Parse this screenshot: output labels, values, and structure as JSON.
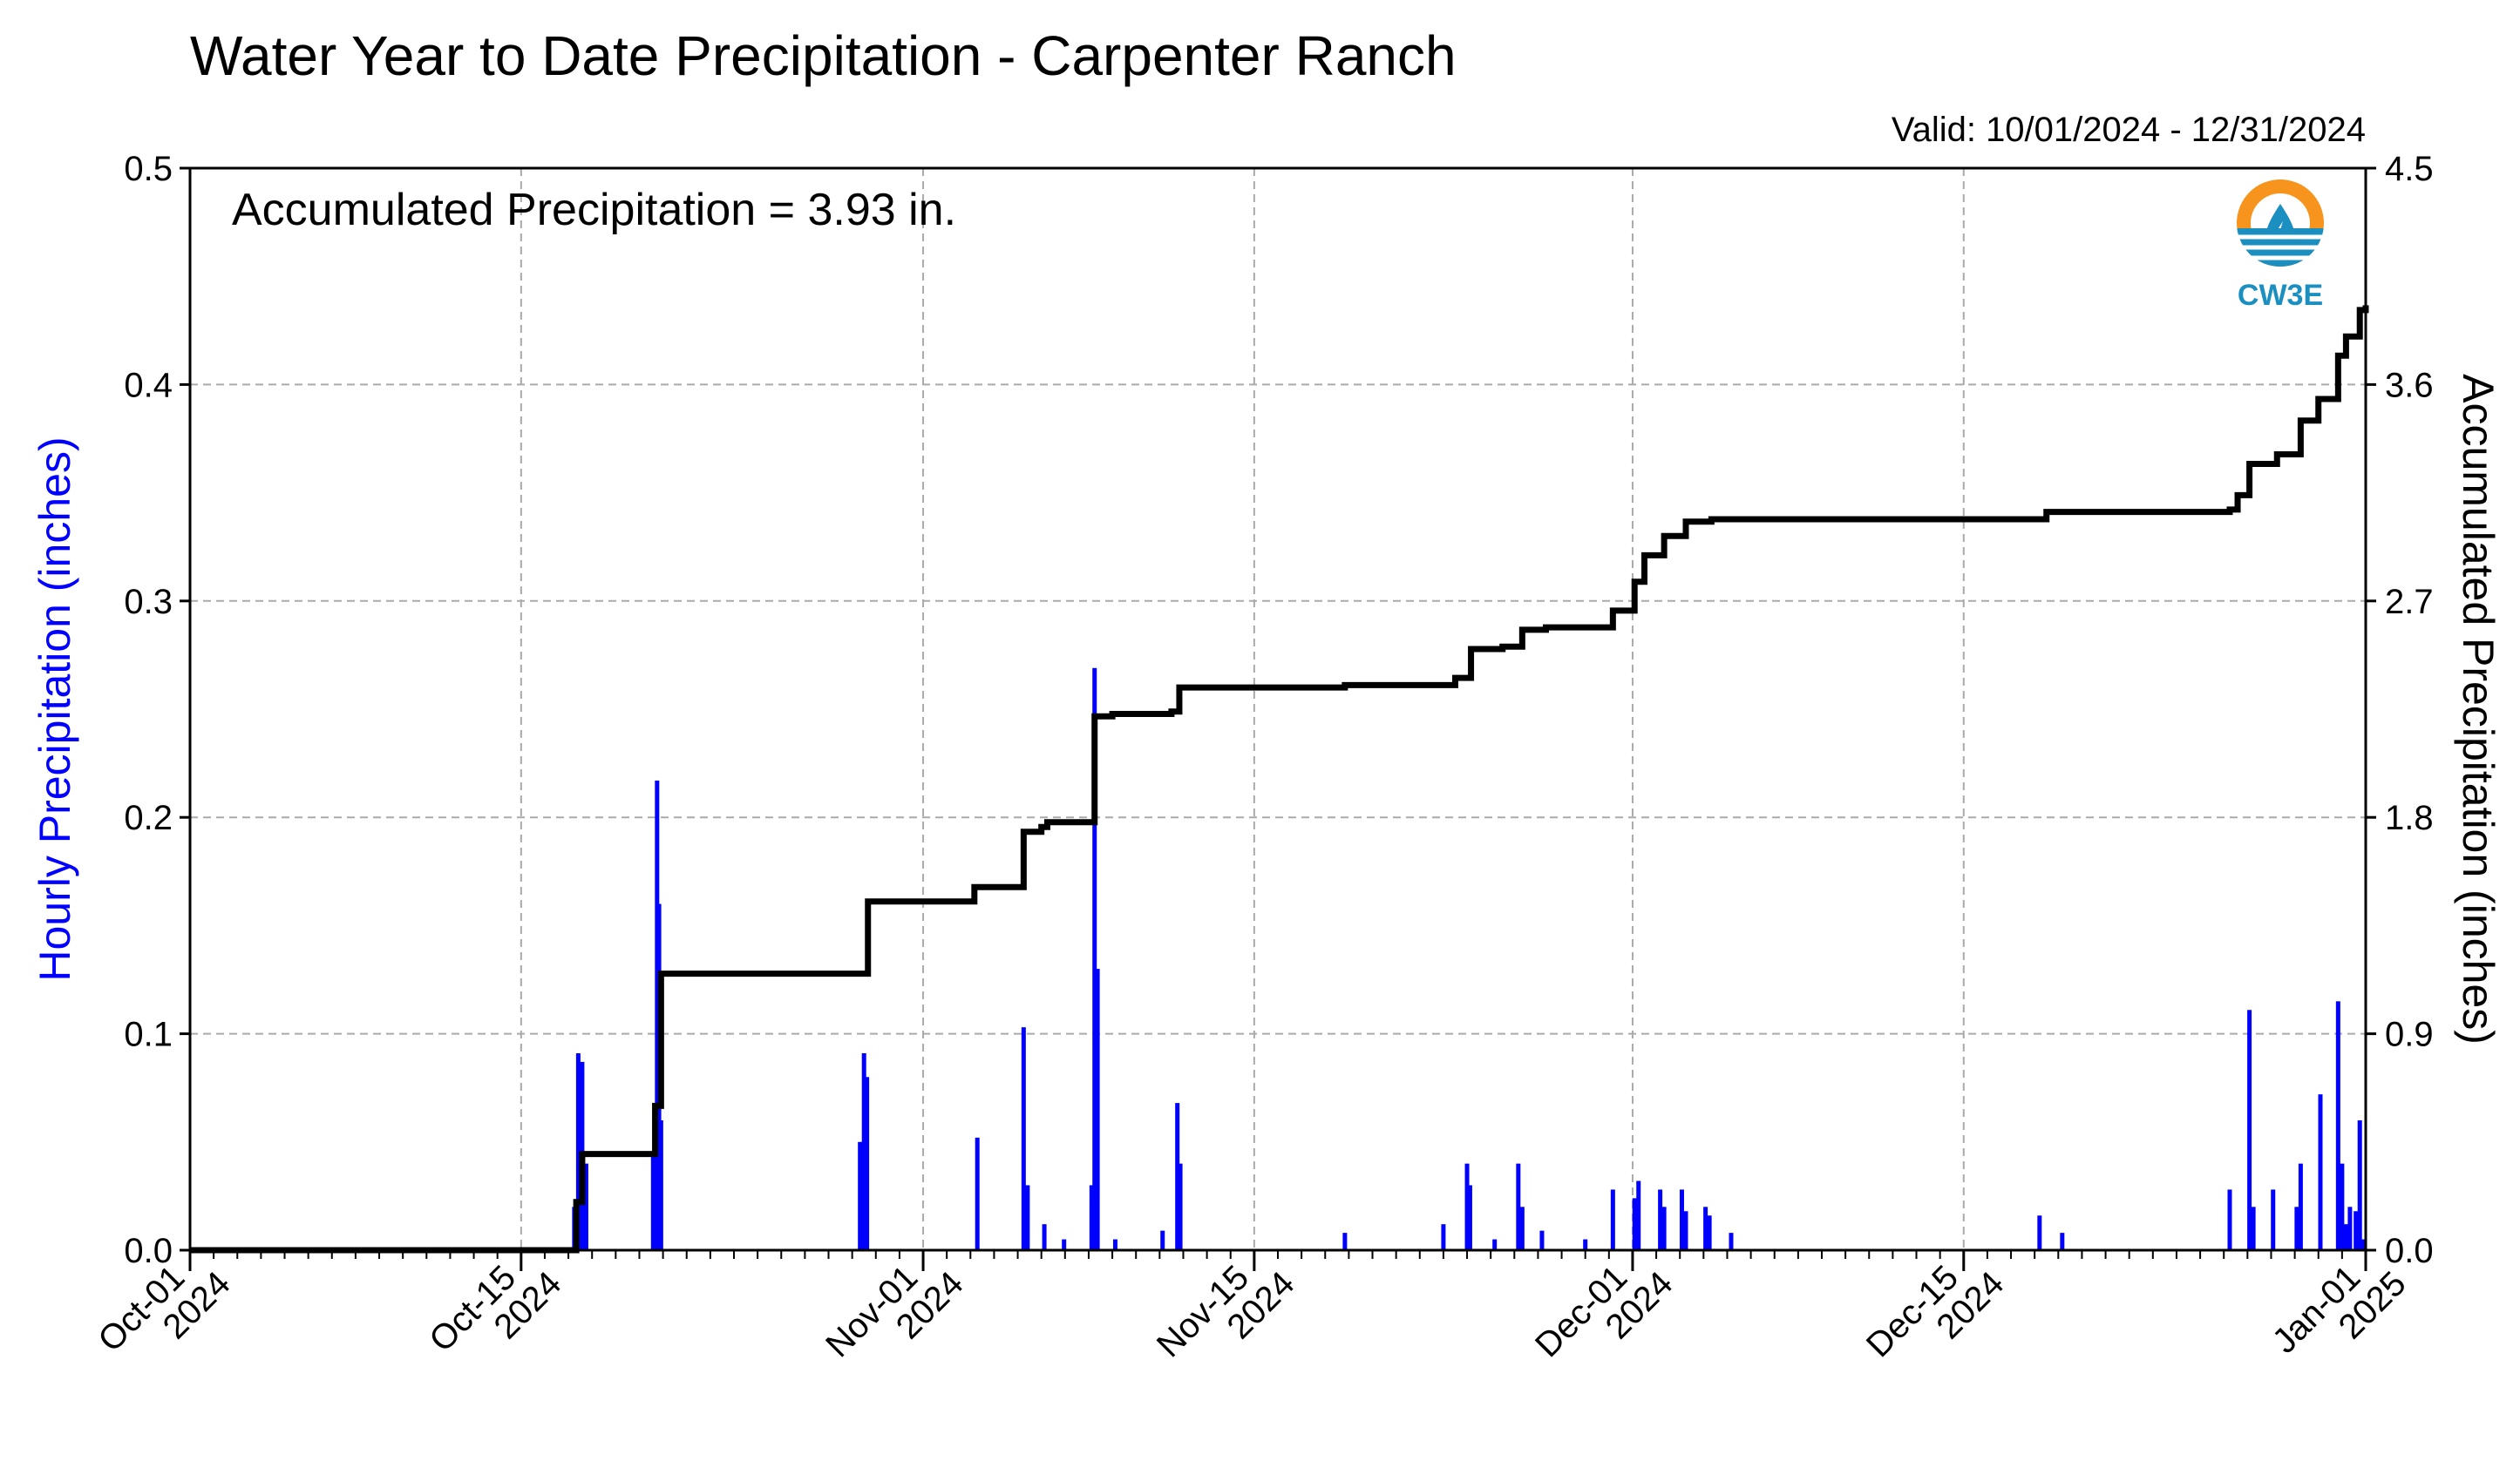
{
  "title": "Water Year to Date Precipitation - Carpenter Ranch",
  "valid_text": "Valid: 10/01/2024 - 12/31/2024",
  "annotation": "Accumulated Precipitation = 3.93 in.",
  "logo": {
    "text": "CW3E",
    "icon": "water-drop-sun-icon",
    "colors": {
      "sun": "#f7941d",
      "water": "#1b8fc0"
    }
  },
  "colors": {
    "bars": "#0000ff",
    "line": "#000000",
    "grid": "#aaaaaa",
    "left_label": "#0000ff"
  },
  "chart_data": {
    "type": "bar+line",
    "xlim": [
      "2024-10-01",
      "2025-01-01"
    ],
    "x_ticks": [
      {
        "date": "2024-10-01",
        "line1": "Oct-01",
        "line2": "2024"
      },
      {
        "date": "2024-10-15",
        "line1": "Oct-15",
        "line2": "2024"
      },
      {
        "date": "2024-11-01",
        "line1": "Nov-01",
        "line2": "2024"
      },
      {
        "date": "2024-11-15",
        "line1": "Nov-15",
        "line2": "2024"
      },
      {
        "date": "2024-12-01",
        "line1": "Dec-01",
        "line2": "2024"
      },
      {
        "date": "2024-12-15",
        "line1": "Dec-15",
        "line2": "2024"
      },
      {
        "date": "2025-01-01",
        "line1": "Jan-01",
        "line2": "2025"
      }
    ],
    "left_axis": {
      "label": "Hourly Precipitation (inches)",
      "ylim": [
        0,
        0.5
      ],
      "ticks": [
        "0.0",
        "0.1",
        "0.2",
        "0.3",
        "0.4",
        "0.5"
      ]
    },
    "right_axis": {
      "label": "Accumulated Precipitation (inches)",
      "ylim": [
        0,
        4.5
      ],
      "ticks": [
        "0.0",
        "0.9",
        "1.8",
        "2.7",
        "3.6",
        "4.5"
      ]
    },
    "grid": true,
    "hourly_bars": [
      [
        "2024-10-17T06",
        0.02
      ],
      [
        "2024-10-17T10",
        0.091
      ],
      [
        "2024-10-17T14",
        0.087
      ],
      [
        "2024-10-17T18",
        0.04
      ],
      [
        "2024-10-20T14",
        0.045
      ],
      [
        "2024-10-20T18",
        0.217
      ],
      [
        "2024-10-20T20",
        0.16
      ],
      [
        "2024-10-20T22",
        0.06
      ],
      [
        "2024-10-29T08",
        0.05
      ],
      [
        "2024-10-29T12",
        0.091
      ],
      [
        "2024-10-29T15",
        0.08
      ],
      [
        "2024-11-03T07",
        0.052
      ],
      [
        "2024-11-05T06",
        0.103
      ],
      [
        "2024-11-05T10",
        0.03
      ],
      [
        "2024-11-06T03",
        0.012
      ],
      [
        "2024-11-06T23",
        0.005
      ],
      [
        "2024-11-08T03",
        0.03
      ],
      [
        "2024-11-08T06",
        0.269
      ],
      [
        "2024-11-08T09",
        0.13
      ],
      [
        "2024-11-09T03",
        0.005
      ],
      [
        "2024-11-11T03",
        0.009
      ],
      [
        "2024-11-11T18",
        0.068
      ],
      [
        "2024-11-11T21",
        0.04
      ],
      [
        "2024-11-18T20",
        0.008
      ],
      [
        "2024-11-23T00",
        0.012
      ],
      [
        "2024-11-24T00",
        0.04
      ],
      [
        "2024-11-24T03",
        0.03
      ],
      [
        "2024-11-25T04",
        0.005
      ],
      [
        "2024-11-26T04",
        0.04
      ],
      [
        "2024-11-26T08",
        0.02
      ],
      [
        "2024-11-27T04",
        0.009
      ],
      [
        "2024-11-29T00",
        0.005
      ],
      [
        "2024-11-30T04",
        0.028
      ],
      [
        "2024-12-01T02",
        0.024
      ],
      [
        "2024-12-01T06",
        0.032
      ],
      [
        "2024-12-02T04",
        0.028
      ],
      [
        "2024-12-02T08",
        0.02
      ],
      [
        "2024-12-03T02",
        0.028
      ],
      [
        "2024-12-03T06",
        0.018
      ],
      [
        "2024-12-04T02",
        0.02
      ],
      [
        "2024-12-04T06",
        0.016
      ],
      [
        "2024-12-05T04",
        0.008
      ],
      [
        "2024-12-18T05",
        0.016
      ],
      [
        "2024-12-19T04",
        0.008
      ],
      [
        "2024-12-26T06",
        0.028
      ],
      [
        "2024-12-27T02",
        0.111
      ],
      [
        "2024-12-27T06",
        0.02
      ],
      [
        "2024-12-28T02",
        0.028
      ],
      [
        "2024-12-29T02",
        0.02
      ],
      [
        "2024-12-29T06",
        0.04
      ],
      [
        "2024-12-30T02",
        0.072
      ],
      [
        "2024-12-30T20",
        0.115
      ],
      [
        "2024-12-31T00",
        0.04
      ],
      [
        "2024-12-31T04",
        0.012
      ],
      [
        "2024-12-31T08",
        0.02
      ],
      [
        "2024-12-31T14",
        0.018
      ],
      [
        "2024-12-31T18",
        0.06
      ],
      [
        "2024-12-31T22",
        0.005
      ]
    ],
    "accumulated_line": [
      [
        "2024-10-01T00",
        0.0
      ],
      [
        "2024-10-17T06",
        0.0
      ],
      [
        "2024-10-17T08",
        0.2
      ],
      [
        "2024-10-17T14",
        0.4
      ],
      [
        "2024-10-20T14",
        0.4
      ],
      [
        "2024-10-20T16",
        0.6
      ],
      [
        "2024-10-20T22",
        1.15
      ],
      [
        "2024-10-29T08",
        1.15
      ],
      [
        "2024-10-29T16",
        1.45
      ],
      [
        "2024-11-03T00",
        1.45
      ],
      [
        "2024-11-03T04",
        1.51
      ],
      [
        "2024-11-05T00",
        1.51
      ],
      [
        "2024-11-05T06",
        1.74
      ],
      [
        "2024-11-06T00",
        1.76
      ],
      [
        "2024-11-06T06",
        1.78
      ],
      [
        "2024-11-08T00",
        1.78
      ],
      [
        "2024-11-08T06",
        2.22
      ],
      [
        "2024-11-09T00",
        2.23
      ],
      [
        "2024-11-11T12",
        2.24
      ],
      [
        "2024-11-11T20",
        2.34
      ],
      [
        "2024-11-18T00",
        2.34
      ],
      [
        "2024-11-18T20",
        2.35
      ],
      [
        "2024-11-23T00",
        2.35
      ],
      [
        "2024-11-23T12",
        2.38
      ],
      [
        "2024-11-24T04",
        2.5
      ],
      [
        "2024-11-25T12",
        2.51
      ],
      [
        "2024-11-26T08",
        2.58
      ],
      [
        "2024-11-27T08",
        2.59
      ],
      [
        "2024-11-29T00",
        2.59
      ],
      [
        "2024-11-30T04",
        2.66
      ],
      [
        "2024-12-01T02",
        2.78
      ],
      [
        "2024-12-01T12",
        2.89
      ],
      [
        "2024-12-02T04",
        2.89
      ],
      [
        "2024-12-02T08",
        2.97
      ],
      [
        "2024-12-03T06",
        3.03
      ],
      [
        "2024-12-04T08",
        3.04
      ],
      [
        "2024-12-18T05",
        3.04
      ],
      [
        "2024-12-18T12",
        3.07
      ],
      [
        "2024-12-26T06",
        3.08
      ],
      [
        "2024-12-26T14",
        3.14
      ],
      [
        "2024-12-27T02",
        3.27
      ],
      [
        "2024-12-28T06",
        3.31
      ],
      [
        "2024-12-29T06",
        3.45
      ],
      [
        "2024-12-30T00",
        3.54
      ],
      [
        "2024-12-30T20",
        3.72
      ],
      [
        "2024-12-31T04",
        3.8
      ],
      [
        "2024-12-31T18",
        3.91
      ],
      [
        "2025-01-01T00",
        3.93
      ]
    ]
  }
}
